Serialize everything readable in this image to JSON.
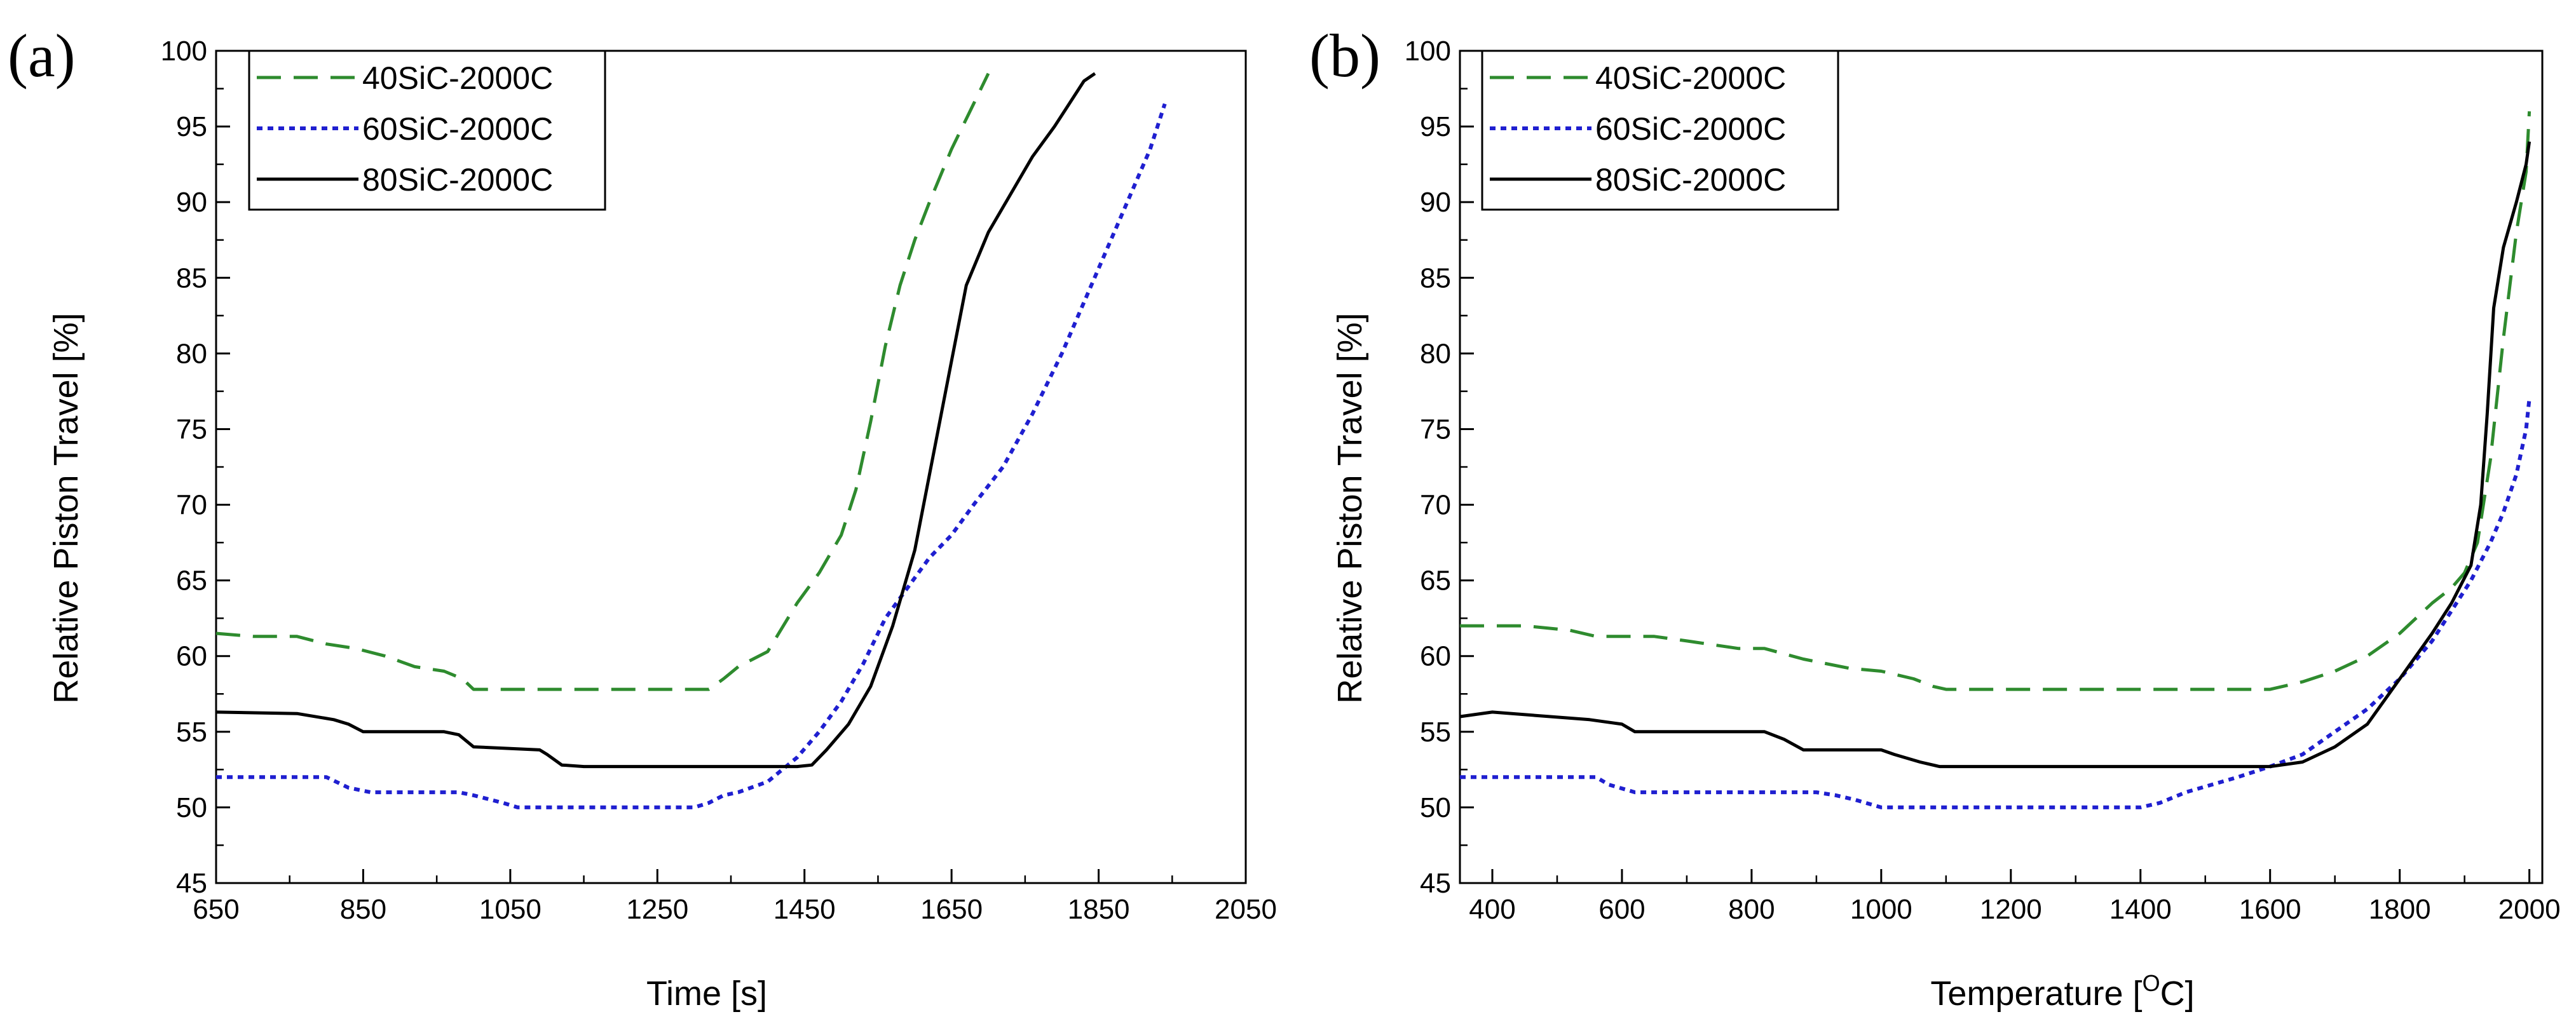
{
  "colors": {
    "s40": "#2e8b2e",
    "s60": "#1f1fd0",
    "s80": "#000000",
    "axis": "#000000"
  },
  "chart_data": [
    {
      "type": "line",
      "panel_label": "(a)",
      "title": "",
      "xlabel": "Time [s]",
      "ylabel": "Relative Piston Travel [%]",
      "xlim": [
        650,
        2050
      ],
      "ylim": [
        45,
        100
      ],
      "x_ticks": [
        650,
        850,
        1050,
        1250,
        1450,
        1650,
        1850,
        2050
      ],
      "y_ticks": [
        45,
        50,
        55,
        60,
        65,
        70,
        75,
        80,
        85,
        90,
        95,
        100
      ],
      "grid": false,
      "legend_position": "top-left",
      "series": [
        {
          "name": "40SiC-2000C",
          "style": "dashed",
          "color_key": "s40",
          "x": [
            650,
            700,
            760,
            800,
            840,
            880,
            920,
            960,
            985,
            1000,
            1050,
            1150,
            1250,
            1320,
            1340,
            1360,
            1400,
            1440,
            1470,
            1500,
            1520,
            1540,
            1560,
            1580,
            1600,
            1620,
            1650,
            1680,
            1700
          ],
          "y": [
            61.5,
            61.3,
            61.3,
            60.8,
            60.5,
            60.0,
            59.3,
            59.0,
            58.5,
            57.8,
            57.8,
            57.8,
            57.8,
            57.8,
            58.5,
            59.3,
            60.3,
            63.5,
            65.5,
            68.0,
            71.0,
            75.5,
            80.5,
            84.5,
            87.5,
            90.0,
            93.5,
            96.5,
            98.5
          ]
        },
        {
          "name": "60SiC-2000C",
          "style": "dotted",
          "color_key": "s60",
          "x": [
            650,
            800,
            830,
            860,
            980,
            1000,
            1040,
            1060,
            1100,
            1300,
            1320,
            1340,
            1360,
            1400,
            1440,
            1470,
            1500,
            1530,
            1560,
            1590,
            1620,
            1650,
            1680,
            1720,
            1760,
            1800,
            1840,
            1880,
            1920,
            1940
          ],
          "y": [
            52.0,
            52.0,
            51.3,
            51.0,
            51.0,
            50.8,
            50.3,
            50.0,
            50.0,
            50.0,
            50.3,
            50.8,
            51.0,
            51.7,
            53.3,
            55.0,
            57.0,
            59.5,
            62.5,
            64.5,
            66.5,
            68.0,
            70.0,
            72.5,
            76.0,
            80.0,
            84.5,
            89.0,
            93.5,
            96.5
          ]
        },
        {
          "name": "80SiC-2000C",
          "style": "solid",
          "color_key": "s80",
          "x": [
            650,
            760,
            810,
            830,
            850,
            960,
            980,
            1000,
            1090,
            1100,
            1120,
            1150,
            1300,
            1440,
            1460,
            1480,
            1510,
            1540,
            1570,
            1600,
            1630,
            1650,
            1670,
            1700,
            1730,
            1760,
            1790,
            1810,
            1830,
            1845
          ],
          "y": [
            56.3,
            56.2,
            55.8,
            55.5,
            55.0,
            55.0,
            54.8,
            54.0,
            53.8,
            53.5,
            52.8,
            52.7,
            52.7,
            52.7,
            52.8,
            53.8,
            55.5,
            58.0,
            62.0,
            67.0,
            74.5,
            79.5,
            84.5,
            88.0,
            90.5,
            93.0,
            95.0,
            96.5,
            98.0,
            98.5
          ]
        }
      ]
    },
    {
      "type": "line",
      "panel_label": "(b)",
      "title": "",
      "xlabel": "Temperature [",
      "xlabel_unit_sup": "O",
      "xlabel_unit_tail": "C]",
      "ylabel": "Relative Piston Travel [%]",
      "xlim": [
        350,
        2020
      ],
      "ylim": [
        45,
        100
      ],
      "x_ticks": [
        400,
        600,
        800,
        1000,
        1200,
        1400,
        1600,
        1800,
        2000
      ],
      "y_ticks": [
        45,
        50,
        55,
        60,
        65,
        70,
        75,
        80,
        85,
        90,
        95,
        100
      ],
      "grid": false,
      "legend_position": "top-left",
      "series": [
        {
          "name": "40SiC-2000C",
          "style": "dashed",
          "color_key": "s40",
          "x": [
            350,
            450,
            520,
            560,
            600,
            650,
            700,
            780,
            820,
            880,
            950,
            1000,
            1050,
            1080,
            1100,
            1200,
            1400,
            1600,
            1650,
            1700,
            1750,
            1800,
            1850,
            1880,
            1900,
            1920,
            1940,
            1960,
            1980,
            1995,
            2000
          ],
          "y": [
            62.0,
            62.0,
            61.7,
            61.3,
            61.3,
            61.3,
            61.0,
            60.5,
            60.5,
            59.8,
            59.2,
            59.0,
            58.5,
            58.0,
            57.8,
            57.8,
            57.8,
            57.8,
            58.3,
            59.0,
            60.0,
            61.5,
            63.5,
            64.5,
            65.5,
            67.5,
            73.0,
            81.0,
            88.0,
            92.0,
            96.0
          ]
        },
        {
          "name": "60SiC-2000C",
          "style": "dotted",
          "color_key": "s60",
          "x": [
            350,
            560,
            580,
            620,
            900,
            930,
            960,
            1000,
            1020,
            1400,
            1430,
            1470,
            1550,
            1600,
            1650,
            1700,
            1750,
            1800,
            1850,
            1880,
            1910,
            1940,
            1960,
            1980,
            1995,
            2000
          ],
          "y": [
            52.0,
            52.0,
            51.5,
            51.0,
            51.0,
            50.8,
            50.5,
            50.0,
            50.0,
            50.0,
            50.3,
            51.0,
            52.0,
            52.7,
            53.5,
            55.0,
            56.5,
            58.5,
            61.0,
            63.0,
            65.0,
            67.5,
            69.5,
            72.0,
            75.0,
            77.0
          ]
        },
        {
          "name": "80SiC-2000C",
          "style": "solid",
          "color_key": "s80",
          "x": [
            350,
            400,
            550,
            600,
            620,
            640,
            820,
            850,
            880,
            1000,
            1020,
            1060,
            1090,
            1150,
            1600,
            1650,
            1700,
            1750,
            1800,
            1850,
            1880,
            1910,
            1925,
            1935,
            1945,
            1960,
            1980,
            1995,
            2000
          ],
          "y": [
            56.0,
            56.3,
            55.8,
            55.5,
            55.0,
            55.0,
            55.0,
            54.5,
            53.8,
            53.8,
            53.5,
            53.0,
            52.7,
            52.7,
            52.7,
            53.0,
            54.0,
            55.5,
            58.5,
            61.5,
            63.5,
            66.0,
            70.0,
            76.0,
            83.0,
            87.0,
            90.0,
            92.5,
            94.0
          ]
        }
      ]
    }
  ]
}
